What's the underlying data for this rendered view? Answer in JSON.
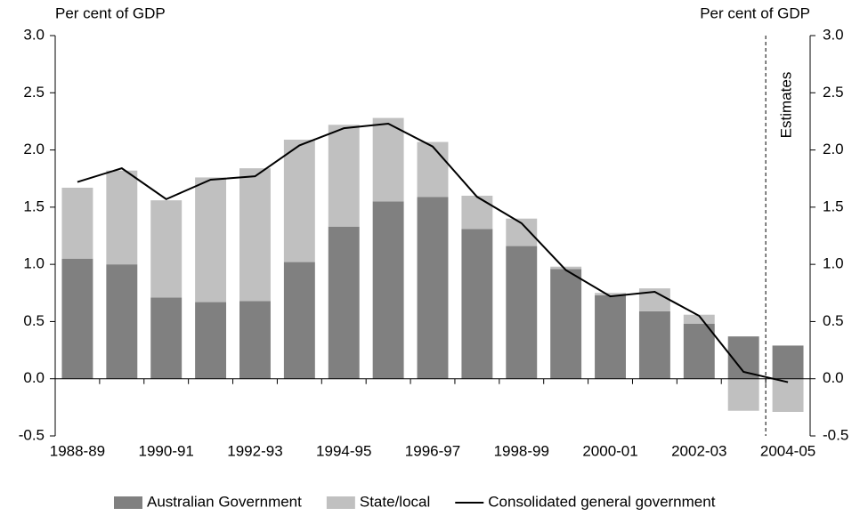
{
  "chart_data": {
    "type": "bar",
    "stacked": true,
    "y_label": "Per cent of GDP",
    "y2_label": "Per cent of GDP",
    "annotation": "Estimates",
    "categories": [
      "1988-89",
      null,
      "1990-91",
      null,
      "1992-93",
      null,
      "1994-95",
      null,
      "1996-97",
      null,
      "1998-99",
      null,
      "2000-01",
      null,
      "2002-03",
      null,
      "2004-05"
    ],
    "series": [
      {
        "name": "Australian Government",
        "color": "#808080",
        "type": "bar",
        "values": [
          1.05,
          1.0,
          0.71,
          0.67,
          0.68,
          1.02,
          1.33,
          1.55,
          1.59,
          1.31,
          1.16,
          0.96,
          0.73,
          0.59,
          0.48,
          0.37,
          0.29
        ]
      },
      {
        "name": "State/local",
        "color": "#c0c0c0",
        "type": "bar",
        "values": [
          0.62,
          0.82,
          0.85,
          1.09,
          1.16,
          1.07,
          0.89,
          0.73,
          0.48,
          0.29,
          0.24,
          0.02,
          0.02,
          0.2,
          0.08,
          -0.28,
          -0.29
        ]
      },
      {
        "name": "Consolidated general government",
        "color": "#000000",
        "type": "line",
        "values": [
          1.72,
          1.84,
          1.57,
          1.74,
          1.77,
          2.04,
          2.19,
          2.23,
          2.03,
          1.59,
          1.36,
          0.95,
          0.72,
          0.76,
          0.55,
          0.06,
          -0.03
        ]
      }
    ],
    "ylim": [
      -0.5,
      3.0
    ],
    "yticks": [
      -0.5,
      {
        "value": 0,
        "label": "0.0"
      },
      0.5,
      {
        "value": 1,
        "label": "1.0"
      },
      1.5,
      {
        "value": 2,
        "label": "2.0"
      },
      2.5,
      {
        "value": 3,
        "label": "3.0"
      }
    ],
    "y2lim": [
      -0.5,
      3.0
    ],
    "y2ticks": [
      -0.5,
      {
        "value": 0,
        "label": "0.0"
      },
      0.5,
      {
        "value": 1,
        "label": "1.0"
      },
      1.5,
      {
        "value": 2,
        "label": "2.0"
      },
      2.5,
      {
        "value": 3,
        "label": "3.0"
      }
    ],
    "grid": false
  }
}
